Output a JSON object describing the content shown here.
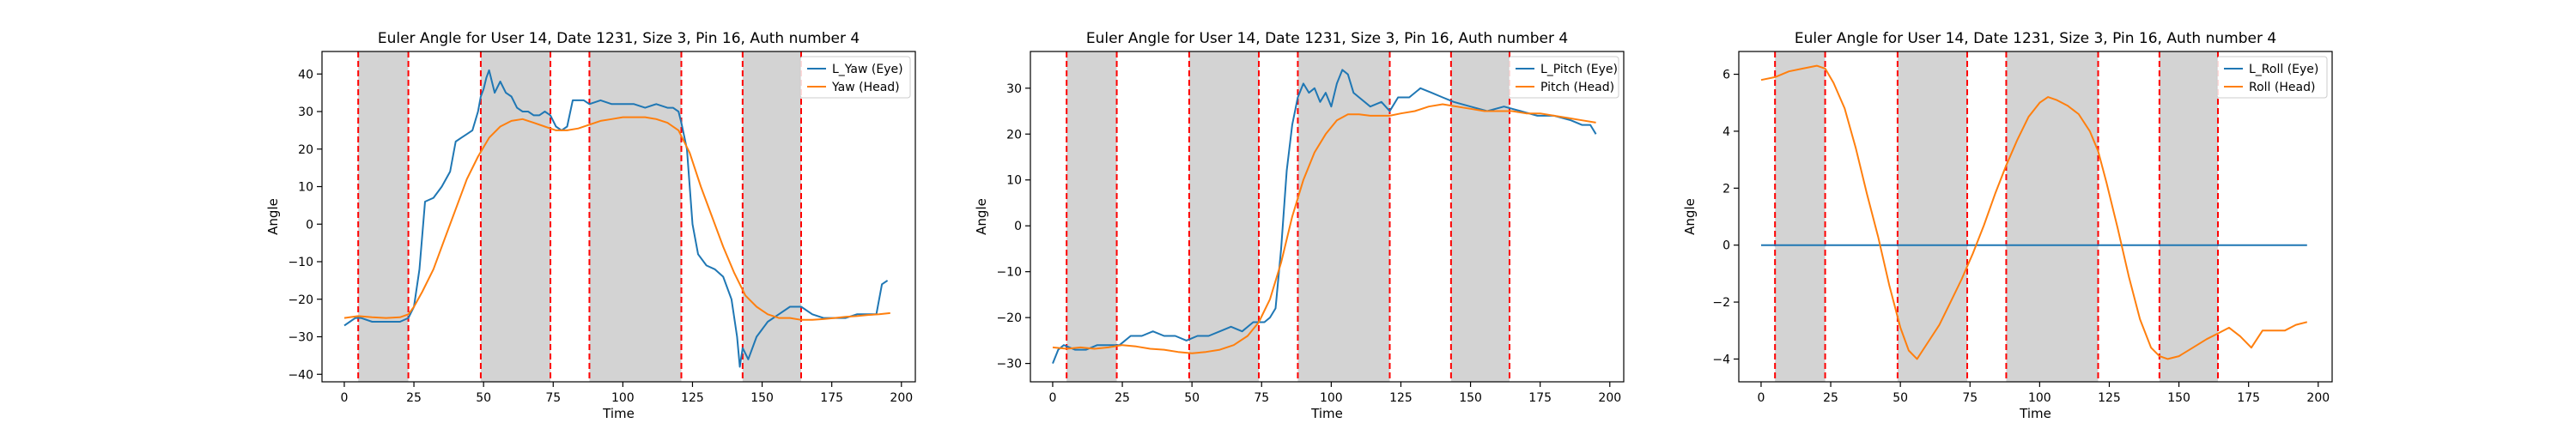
{
  "chart_data": [
    {
      "type": "line",
      "title": "Euler Angle for User 14, Date 1231, Size 3, Pin 16, Auth number 4",
      "xlabel": "Time",
      "ylabel": "Angle",
      "xlim": [
        -8,
        205
      ],
      "ylim": [
        -42,
        46
      ],
      "xticks": [
        0,
        25,
        50,
        75,
        100,
        125,
        150,
        175,
        200
      ],
      "yticks": [
        -40,
        -30,
        -20,
        -10,
        0,
        10,
        20,
        30,
        40
      ],
      "legend_position": "top-right",
      "shaded_intervals": [
        [
          5,
          23
        ],
        [
          49,
          74
        ],
        [
          88,
          121
        ],
        [
          143,
          164
        ]
      ],
      "series": [
        {
          "name": "L_Yaw (Eye)",
          "color": "#1f77b4",
          "x": [
            0,
            2,
            4,
            6,
            10,
            15,
            20,
            23,
            25,
            27,
            29,
            32,
            35,
            38,
            40,
            42,
            44,
            46,
            48,
            49,
            50,
            51,
            52,
            54,
            56,
            58,
            60,
            62,
            64,
            66,
            68,
            70,
            72,
            74,
            76,
            78,
            80,
            82,
            84,
            86,
            88,
            92,
            96,
            100,
            104,
            108,
            112,
            116,
            118,
            120,
            121,
            123,
            125,
            127,
            130,
            133,
            136,
            139,
            141,
            142,
            143,
            145,
            148,
            152,
            156,
            160,
            164,
            168,
            172,
            176,
            180,
            184,
            188,
            191,
            193,
            195
          ],
          "values": [
            -27,
            -26,
            -25,
            -25,
            -26,
            -26,
            -26,
            -25,
            -22,
            -12,
            6,
            7,
            10,
            14,
            22,
            23,
            24,
            25,
            30,
            34,
            36,
            39,
            41,
            35,
            38,
            35,
            34,
            31,
            30,
            30,
            29,
            29,
            30,
            29,
            26,
            25,
            26,
            33,
            33,
            33,
            32,
            33,
            32,
            32,
            32,
            31,
            32,
            31,
            31,
            30,
            27,
            20,
            0,
            -8,
            -11,
            -12,
            -14,
            -20,
            -30,
            -38,
            -33,
            -36,
            -30,
            -26,
            -24,
            -22,
            -22,
            -24,
            -25,
            -25,
            -25,
            -24,
            -24,
            -24,
            -16,
            -15
          ]
        },
        {
          "name": "Yaw (Head)",
          "color": "#ff7f0e",
          "x": [
            0,
            5,
            10,
            15,
            20,
            23,
            25,
            28,
            32,
            36,
            40,
            44,
            48,
            52,
            56,
            60,
            64,
            68,
            72,
            76,
            80,
            84,
            88,
            92,
            96,
            100,
            104,
            108,
            112,
            116,
            120,
            124,
            128,
            132,
            136,
            140,
            144,
            148,
            152,
            156,
            160,
            164,
            168,
            172,
            176,
            180,
            184,
            188,
            192,
            196
          ],
          "values": [
            -25,
            -24.5,
            -24.8,
            -25,
            -24.8,
            -24,
            -22,
            -18,
            -12,
            -4,
            4,
            12,
            18,
            23,
            26,
            27.5,
            28,
            27,
            26,
            25,
            25,
            25.5,
            26.5,
            27.5,
            28,
            28.5,
            28.5,
            28.5,
            28,
            27,
            25,
            19,
            10,
            2,
            -6,
            -13,
            -19,
            -22,
            -24,
            -25,
            -25,
            -25.5,
            -25.5,
            -25.3,
            -25,
            -24.7,
            -24.5,
            -24.2,
            -24,
            -23.7
          ]
        }
      ]
    },
    {
      "type": "line",
      "title": "Euler Angle for User 14, Date 1231, Size 3, Pin 16, Auth number 4",
      "xlabel": "Time",
      "ylabel": "Angle",
      "xlim": [
        -8,
        205
      ],
      "ylim": [
        -34,
        38
      ],
      "xticks": [
        0,
        25,
        50,
        75,
        100,
        125,
        150,
        175,
        200
      ],
      "yticks": [
        -30,
        -20,
        -10,
        0,
        10,
        20,
        30
      ],
      "legend_position": "top-right",
      "shaded_intervals": [
        [
          5,
          23
        ],
        [
          49,
          74
        ],
        [
          88,
          121
        ],
        [
          143,
          164
        ]
      ],
      "series": [
        {
          "name": "L_Pitch (Eye)",
          "color": "#1f77b4",
          "x": [
            0,
            2,
            4,
            8,
            12,
            16,
            20,
            24,
            28,
            32,
            36,
            40,
            44,
            48,
            52,
            56,
            60,
            64,
            68,
            72,
            74,
            76,
            78,
            80,
            82,
            84,
            86,
            88,
            90,
            92,
            94,
            96,
            98,
            100,
            102,
            104,
            106,
            108,
            110,
            114,
            118,
            121,
            124,
            128,
            132,
            136,
            140,
            144,
            150,
            156,
            162,
            168,
            174,
            180,
            186,
            190,
            193,
            195
          ],
          "values": [
            -30,
            -27,
            -26,
            -27,
            -27,
            -26,
            -26,
            -26,
            -24,
            -24,
            -23,
            -24,
            -24,
            -25,
            -24,
            -24,
            -23,
            -22,
            -23,
            -21,
            -21,
            -21,
            -20,
            -18,
            -5,
            12,
            22,
            28,
            31,
            29,
            30,
            27,
            29,
            26,
            31,
            34,
            33,
            29,
            28,
            26,
            27,
            25,
            28,
            28,
            30,
            29,
            28,
            27,
            26,
            25,
            26,
            25,
            24,
            24,
            23,
            22,
            22,
            20
          ]
        },
        {
          "name": "Pitch (Head)",
          "color": "#ff7f0e",
          "x": [
            0,
            5,
            10,
            15,
            20,
            25,
            30,
            35,
            40,
            45,
            50,
            55,
            60,
            65,
            70,
            74,
            78,
            82,
            86,
            90,
            94,
            98,
            102,
            106,
            110,
            114,
            118,
            121,
            125,
            130,
            135,
            140,
            145,
            150,
            155,
            160,
            165,
            170,
            175,
            180,
            185,
            190,
            195
          ],
          "values": [
            -26.5,
            -26.8,
            -26.5,
            -26.8,
            -26.5,
            -26,
            -26.3,
            -26.8,
            -27,
            -27.5,
            -27.8,
            -27.5,
            -27,
            -26,
            -24,
            -21,
            -16,
            -8,
            2,
            10,
            16,
            20,
            23,
            24.3,
            24.3,
            24,
            24,
            24,
            24.5,
            25,
            26,
            26.5,
            26,
            25.5,
            25,
            25,
            25,
            24.5,
            24.5,
            24,
            23.5,
            23,
            22.5
          ]
        }
      ]
    },
    {
      "type": "line",
      "title": "Euler Angle for User 14, Date 1231, Size 3, Pin 16, Auth number 4",
      "xlabel": "Time",
      "ylabel": "Angle",
      "xlim": [
        -8,
        205
      ],
      "ylim": [
        -4.8,
        6.8
      ],
      "xticks": [
        0,
        25,
        50,
        75,
        100,
        125,
        150,
        175,
        200
      ],
      "yticks": [
        -4,
        -2,
        0,
        2,
        4,
        6
      ],
      "legend_position": "top-right",
      "shaded_intervals": [
        [
          5,
          23
        ],
        [
          49,
          74
        ],
        [
          88,
          121
        ],
        [
          143,
          164
        ]
      ],
      "series": [
        {
          "name": "L_Roll (Eye)",
          "color": "#1f77b4",
          "x": [
            0,
            196
          ],
          "values": [
            0,
            0
          ]
        },
        {
          "name": "Roll (Head)",
          "color": "#ff7f0e",
          "x": [
            0,
            5,
            10,
            15,
            20,
            23,
            26,
            30,
            34,
            38,
            42,
            46,
            50,
            53,
            56,
            60,
            64,
            68,
            72,
            76,
            80,
            84,
            88,
            92,
            96,
            100,
            103,
            106,
            110,
            114,
            118,
            121,
            124,
            128,
            132,
            136,
            140,
            143,
            146,
            150,
            155,
            160,
            164,
            168,
            172,
            176,
            180,
            184,
            188,
            192,
            196
          ],
          "values": [
            5.8,
            5.9,
            6.1,
            6.2,
            6.3,
            6.2,
            5.7,
            4.8,
            3.4,
            1.8,
            0.3,
            -1.4,
            -2.9,
            -3.7,
            -4.0,
            -3.4,
            -2.8,
            -2.0,
            -1.2,
            -0.3,
            0.7,
            1.8,
            2.8,
            3.7,
            4.5,
            5.0,
            5.2,
            5.1,
            4.9,
            4.6,
            4.0,
            3.3,
            2.2,
            0.6,
            -1.1,
            -2.6,
            -3.6,
            -3.9,
            -4.0,
            -3.9,
            -3.6,
            -3.3,
            -3.1,
            -2.9,
            -3.2,
            -3.6,
            -3.0,
            -3.0,
            -3.0,
            -2.8,
            -2.7
          ]
        }
      ]
    }
  ]
}
